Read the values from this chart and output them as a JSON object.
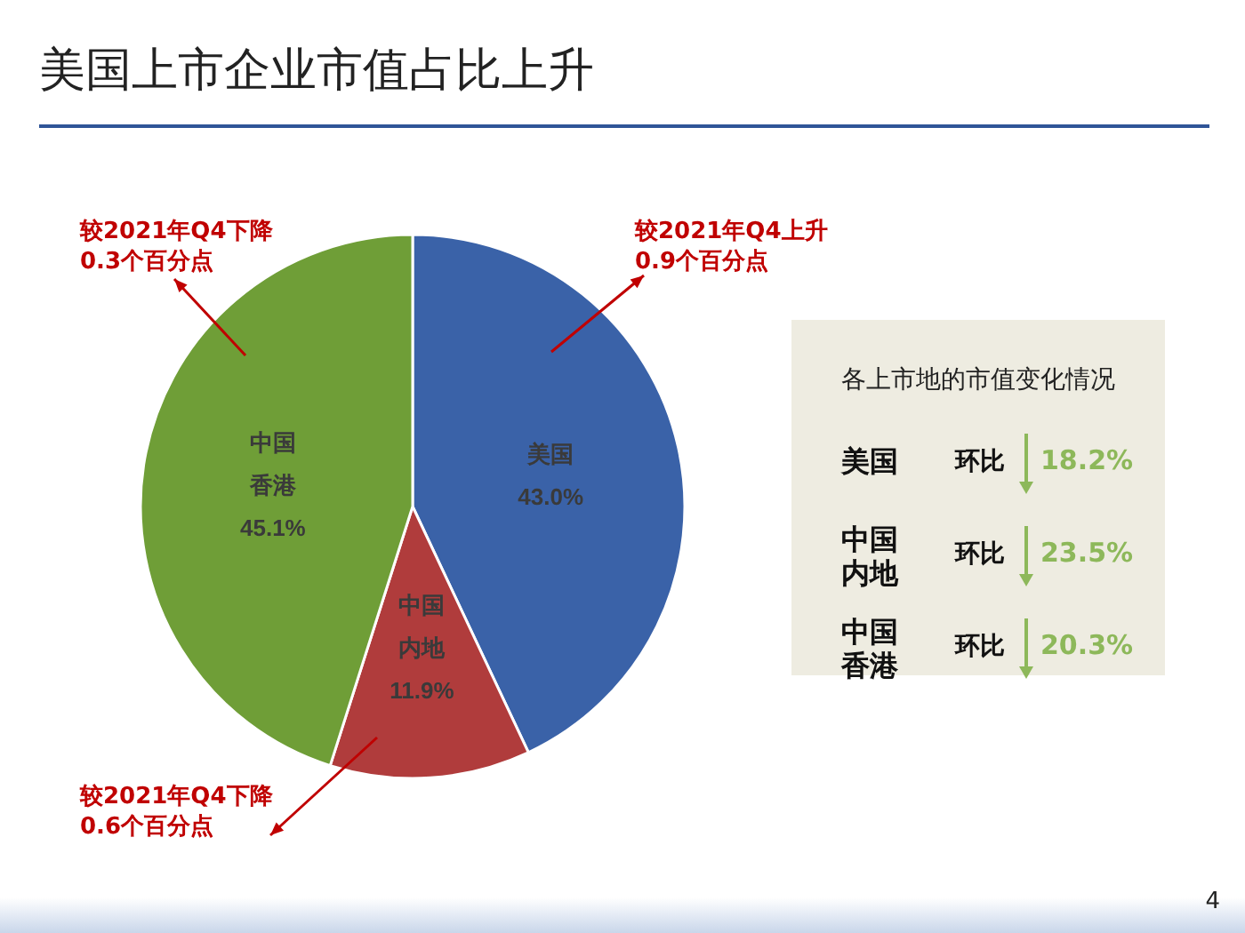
{
  "chart_data": [
    {
      "type": "pie",
      "title": "美国上市企业市值占比上升",
      "categories": [
        "美国",
        "中国内地",
        "中国香港"
      ],
      "values": [
        43.0,
        11.9,
        45.1
      ],
      "value_labels": [
        "43.0%",
        "11.9%",
        "45.1%"
      ],
      "colors": [
        "#3a62a8",
        "#b03c3c",
        "#6f9e37"
      ],
      "annotations": [
        "较2021年Q4上升\n0.9个百分点",
        "较2021年Q4下降\n0.6个百分点",
        "较2021年Q4下降\n0.3个百分点",
        "4"
      ],
      "legend": false
    },
    {
      "type": "other",
      "title": "各上市地的市值变化情况",
      "categories": [
        "美国",
        "中国内地",
        "中国香港"
      ],
      "ylabel": "环比",
      "value_labels": [
        "18.2%",
        "23.5%",
        "20.3%"
      ],
      "color": "#8db85a"
    }
  ]
}
